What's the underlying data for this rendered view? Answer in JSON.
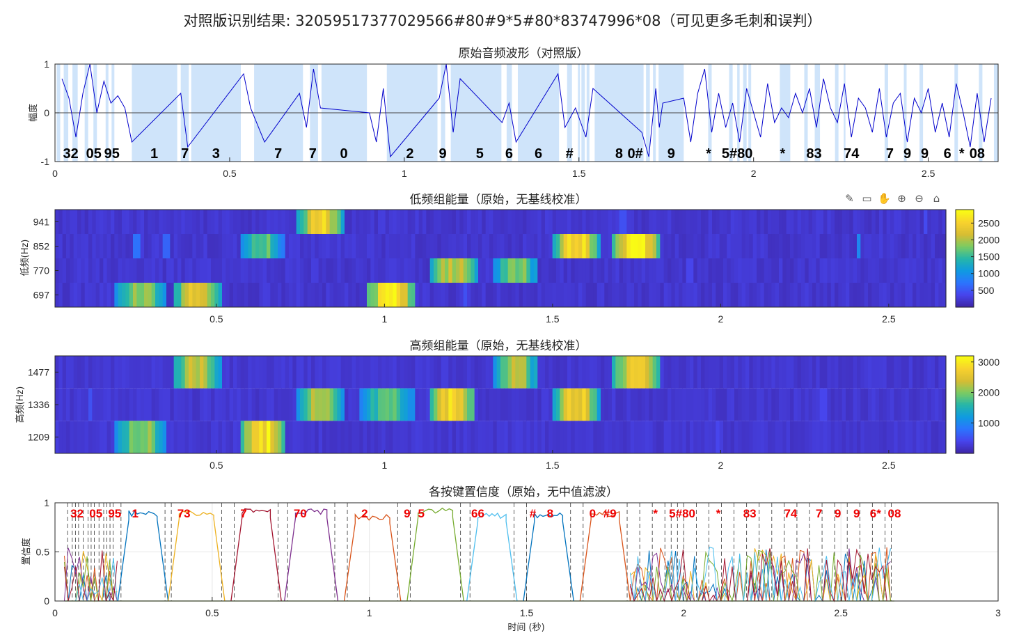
{
  "figure_title": "对照版识别结果: 32059517377029566#80#9*5#80*83747996*08（可见更多毛刺和误判）",
  "toolbar": {
    "icons": [
      "brush-icon",
      "data-tip-icon",
      "pan-hand-icon",
      "zoom-in-icon",
      "zoom-out-icon",
      "home-icon"
    ],
    "glyphs": [
      "✎",
      "▭",
      "✋",
      "⊕",
      "⊖",
      "⌂"
    ]
  },
  "chart_data": [
    {
      "type": "line",
      "title": "原始音频波形（对照版）",
      "ylabel": "幅度",
      "xlim": [
        0,
        2.7
      ],
      "ylim": [
        -1,
        1
      ],
      "xticks": [
        "0",
        "0.5",
        "1",
        "1.5",
        "2",
        "2.5"
      ],
      "yticks": [
        "-1",
        "0",
        "1"
      ],
      "highlight_color": "#cfe4fa",
      "line_color": "#0000cc",
      "highlight_intervals": [
        [
          0.005,
          0.015
        ],
        [
          0.025,
          0.038
        ],
        [
          0.05,
          0.065
        ],
        [
          0.085,
          0.095
        ],
        [
          0.11,
          0.12
        ],
        [
          0.145,
          0.153
        ],
        [
          0.162,
          0.17
        ],
        [
          0.22,
          0.35
        ],
        [
          0.36,
          0.383
        ],
        [
          0.39,
          0.532
        ],
        [
          0.57,
          0.71
        ],
        [
          0.73,
          0.753
        ],
        [
          0.763,
          0.893
        ],
        [
          0.95,
          1.095
        ],
        [
          1.105,
          1.117
        ],
        [
          1.133,
          1.278
        ],
        [
          1.293,
          1.308
        ],
        [
          1.325,
          1.443
        ],
        [
          1.466,
          1.48
        ],
        [
          1.497,
          1.503
        ],
        [
          1.507,
          1.517
        ],
        [
          1.522,
          1.53
        ],
        [
          1.545,
          1.685
        ],
        [
          1.692,
          1.703
        ],
        [
          1.712,
          1.72
        ],
        [
          1.728,
          1.8
        ],
        [
          1.87,
          1.88
        ],
        [
          1.93,
          1.94
        ],
        [
          1.953,
          1.96
        ],
        [
          1.97,
          1.98
        ],
        [
          1.985,
          1.993
        ],
        [
          2.075,
          2.105
        ],
        [
          2.145,
          2.155
        ],
        [
          2.175,
          2.19
        ],
        [
          2.233,
          2.243
        ],
        [
          2.258,
          2.263
        ],
        [
          2.375,
          2.385
        ],
        [
          2.43,
          2.438
        ],
        [
          2.475,
          2.485
        ],
        [
          2.575,
          2.585
        ],
        [
          2.645,
          2.655
        ],
        [
          2.688,
          2.7
        ]
      ],
      "waveform": {
        "x": [
          0.02,
          0.04,
          0.06,
          0.08,
          0.1,
          0.12,
          0.14,
          0.16,
          0.18,
          0.2,
          0.22,
          0.36,
          0.38,
          0.54,
          0.56,
          0.6,
          0.7,
          0.72,
          0.74,
          0.76,
          0.9,
          0.92,
          0.94,
          0.96,
          1.1,
          1.12,
          1.14,
          1.16,
          1.28,
          1.3,
          1.32,
          1.44,
          1.46,
          1.49,
          1.52,
          1.54,
          1.68,
          1.7,
          1.72,
          1.73,
          1.74,
          1.8,
          1.82,
          1.84,
          1.86,
          1.88,
          1.9,
          1.92,
          1.94,
          1.96,
          1.98,
          2.0,
          2.02,
          2.04,
          2.06,
          2.08,
          2.1,
          2.12,
          2.14,
          2.16,
          2.18,
          2.2,
          2.22,
          2.24,
          2.26,
          2.28,
          2.3,
          2.32,
          2.34,
          2.36,
          2.38,
          2.4,
          2.42,
          2.44,
          2.46,
          2.48,
          2.5,
          2.52,
          2.54,
          2.56,
          2.58,
          2.6,
          2.62,
          2.64,
          2.66,
          2.68
        ],
        "y": [
          0.7,
          0.3,
          -0.5,
          0.4,
          1.0,
          0.0,
          0.65,
          0.2,
          0.35,
          0.1,
          -0.6,
          0.4,
          -0.7,
          0.8,
          0.1,
          -0.6,
          0.4,
          -0.3,
          0.9,
          0.1,
          0.0,
          -0.6,
          0.5,
          -0.9,
          0.3,
          1.0,
          -0.4,
          0.7,
          -0.2,
          0.2,
          -0.6,
          0.8,
          -0.3,
          0.1,
          -0.5,
          0.5,
          -0.4,
          -0.9,
          0.5,
          -0.3,
          0.2,
          0.3,
          -0.6,
          0.4,
          0.9,
          -0.4,
          0.4,
          -0.3,
          0.2,
          -0.6,
          0.5,
          0.0,
          -0.5,
          0.6,
          -0.2,
          0.1,
          -0.1,
          0.4,
          0.0,
          0.5,
          -0.3,
          0.7,
          0.1,
          -0.2,
          0.6,
          -0.5,
          0.3,
          0.1,
          -0.4,
          0.5,
          -0.5,
          0.2,
          0.4,
          -0.6,
          0.3,
          0.0,
          0.5,
          -0.4,
          0.2,
          -0.5,
          0.6,
          0.0,
          -0.7,
          0.4,
          -0.6,
          0.3
        ]
      },
      "segment_labels": [
        {
          "text": "32",
          "x": 0.045
        },
        {
          "text": "05",
          "x": 0.111
        },
        {
          "text": "95",
          "x": 0.163
        },
        {
          "text": "1",
          "x": 0.284
        },
        {
          "text": "7",
          "x": 0.372
        },
        {
          "text": "3",
          "x": 0.461
        },
        {
          "text": "7",
          "x": 0.639
        },
        {
          "text": "7",
          "x": 0.738
        },
        {
          "text": "0",
          "x": 0.827
        },
        {
          "text": "2",
          "x": 1.016
        },
        {
          "text": "9",
          "x": 1.11
        },
        {
          "text": "5",
          "x": 1.216
        },
        {
          "text": "6",
          "x": 1.3
        },
        {
          "text": "6",
          "x": 1.384
        },
        {
          "text": "#",
          "x": 1.473
        },
        {
          "text": "8",
          "x": 1.615
        },
        {
          "text": "0#",
          "x": 1.661
        },
        {
          "text": "9",
          "x": 1.764
        },
        {
          "text": "*",
          "x": 1.871
        },
        {
          "text": "5#80",
          "x": 1.953
        },
        {
          "text": "*",
          "x": 2.083
        },
        {
          "text": "83",
          "x": 2.173
        },
        {
          "text": "74",
          "x": 2.28
        },
        {
          "text": "7",
          "x": 2.39
        },
        {
          "text": "9",
          "x": 2.44
        },
        {
          "text": "9",
          "x": 2.49
        },
        {
          "text": "6",
          "x": 2.555
        },
        {
          "text": "*",
          "x": 2.596
        },
        {
          "text": "08",
          "x": 2.64
        }
      ]
    },
    {
      "type": "heatmap",
      "title": "低频组能量（原始，无基线校准）",
      "ylabel": "低频(Hz)",
      "xlim": [
        0.02,
        2.67
      ],
      "rows": [
        "941",
        "852",
        "770",
        "697"
      ],
      "xticks": [
        "0.5",
        "1",
        "1.5",
        "2",
        "2.5"
      ],
      "colorbar_ticks": [
        "500",
        "1000",
        "1500",
        "2000",
        "2500"
      ],
      "clim": [
        0,
        2900
      ],
      "baseline": 120,
      "blocks": [
        {
          "row": "697",
          "x": [
            0.2,
            0.35
          ],
          "peak": 2000
        },
        {
          "row": "697",
          "x": [
            0.37,
            0.52
          ],
          "peak": 2300
        },
        {
          "row": "852",
          "x": [
            0.57,
            0.7
          ],
          "peak": 1600
        },
        {
          "row": "941",
          "x": [
            0.74,
            0.88
          ],
          "peak": 2500
        },
        {
          "row": "697",
          "x": [
            0.95,
            1.09
          ],
          "peak": 2900
        },
        {
          "row": "770",
          "x": [
            1.13,
            1.28
          ],
          "peak": 2100
        },
        {
          "row": "770",
          "x": [
            1.32,
            1.46
          ],
          "peak": 1800
        },
        {
          "row": "852",
          "x": [
            1.5,
            1.64
          ],
          "peak": 2600
        },
        {
          "row": "852",
          "x": [
            1.68,
            1.82
          ],
          "peak": 2900
        }
      ],
      "spikes": [
        {
          "row": "852",
          "x": [
            0.25,
            0.27
          ],
          "v": 700
        },
        {
          "row": "852",
          "x": [
            0.34,
            0.36
          ],
          "v": 600
        },
        {
          "row": "852",
          "x": [
            2.4,
            2.42
          ],
          "v": 900
        },
        {
          "row": "941",
          "x": [
            1.7,
            1.72
          ],
          "v": 450
        },
        {
          "row": "697",
          "x": [
            1.24,
            1.25
          ],
          "v": 450
        },
        {
          "row": "941",
          "x": [
            2.6,
            2.61
          ],
          "v": 400
        },
        {
          "row": "770",
          "x": [
            1.9,
            1.92
          ],
          "v": 350
        }
      ]
    },
    {
      "type": "heatmap",
      "title": "高频组能量（原始，无基线校准）",
      "ylabel": "高频(Hz)",
      "xlim": [
        0.02,
        2.67
      ],
      "rows": [
        "1477",
        "1336",
        "1209"
      ],
      "xticks": [
        "0.5",
        "1",
        "1.5",
        "2",
        "2.5"
      ],
      "colorbar_ticks": [
        "1000",
        "2000",
        "3000"
      ],
      "clim": [
        0,
        3200
      ],
      "baseline": 150,
      "blocks": [
        {
          "row": "1209",
          "x": [
            0.2,
            0.35
          ],
          "peak": 2100
        },
        {
          "row": "1477",
          "x": [
            0.37,
            0.52
          ],
          "peak": 2300
        },
        {
          "row": "1209",
          "x": [
            0.57,
            0.71
          ],
          "peak": 3100
        },
        {
          "row": "1336",
          "x": [
            0.74,
            0.88
          ],
          "peak": 2300
        },
        {
          "row": "1336",
          "x": [
            0.93,
            1.09
          ],
          "peak": 1800
        },
        {
          "row": "1336",
          "x": [
            1.13,
            1.27
          ],
          "peak": 2900
        },
        {
          "row": "1477",
          "x": [
            1.32,
            1.46
          ],
          "peak": 2200
        },
        {
          "row": "1336",
          "x": [
            1.5,
            1.64
          ],
          "peak": 2700
        },
        {
          "row": "1477",
          "x": [
            1.68,
            1.82
          ],
          "peak": 2800
        }
      ],
      "spikes": [
        {
          "row": "1336",
          "x": [
            0.12,
            0.13
          ],
          "v": 500
        },
        {
          "row": "1477",
          "x": [
            1.7,
            1.71
          ],
          "v": 450
        },
        {
          "row": "1209",
          "x": [
            1.98,
            2.0
          ],
          "v": 400
        },
        {
          "row": "1336",
          "x": [
            2.3,
            2.32
          ],
          "v": 400
        }
      ]
    },
    {
      "type": "line",
      "title": "各按键置信度（原始，无中值滤波）",
      "ylabel": "置信度",
      "xlabel": "时间 (秒)",
      "xlim": [
        0,
        3
      ],
      "ylim": [
        0,
        1
      ],
      "xticks": [
        "0",
        "0.5",
        "1",
        "1.5",
        "2",
        "2.5",
        "3"
      ],
      "yticks": [
        "0",
        "0.5",
        "1"
      ],
      "plateaus": [
        {
          "x": [
            0.21,
            0.35
          ],
          "level": 0.92,
          "color": "#0072bd"
        },
        {
          "x": [
            0.37,
            0.53
          ],
          "level": 0.93,
          "color": "#edb120"
        },
        {
          "x": [
            0.57,
            0.71
          ],
          "level": 0.94,
          "color": "#a2142f"
        },
        {
          "x": [
            0.74,
            0.89
          ],
          "level": 0.94,
          "color": "#7e2f8e"
        },
        {
          "x": [
            0.93,
            1.09
          ],
          "level": 0.88,
          "color": "#d95319"
        },
        {
          "x": [
            1.13,
            1.29
          ],
          "level": 0.95,
          "color": "#77ac30"
        },
        {
          "x": [
            1.32,
            1.46
          ],
          "level": 0.9,
          "color": "#4dbeee"
        },
        {
          "x": [
            1.5,
            1.64
          ],
          "level": 0.9,
          "color": "#0072bd"
        },
        {
          "x": [
            1.68,
            1.82
          ],
          "level": 0.92,
          "color": "#d95319"
        }
      ],
      "dashed_lines_x": [
        0.04,
        0.055,
        0.065,
        0.075,
        0.09,
        0.105,
        0.115,
        0.125,
        0.14,
        0.155,
        0.165,
        0.175,
        0.185,
        0.21,
        0.35,
        0.37,
        0.53,
        0.57,
        0.71,
        0.74,
        0.89,
        0.93,
        1.09,
        1.13,
        1.29,
        1.32,
        1.46,
        1.5,
        1.64,
        1.68,
        1.82,
        1.86,
        1.9,
        1.94,
        1.96,
        1.98,
        2.0,
        2.04,
        2.08,
        2.12,
        2.16,
        2.2,
        2.24,
        2.28,
        2.32,
        2.36,
        2.4,
        2.44,
        2.48,
        2.52,
        2.56,
        2.6,
        2.64,
        2.66
      ],
      "labels": [
        {
          "text": "32",
          "x": 0.07
        },
        {
          "text": "05",
          "x": 0.13
        },
        {
          "text": "95",
          "x": 0.19
        },
        {
          "text": "1",
          "x": 0.255
        },
        {
          "text": "73",
          "x": 0.41
        },
        {
          "text": "7",
          "x": 0.6
        },
        {
          "text": "70",
          "x": 0.78
        },
        {
          "text": "2",
          "x": 0.985
        },
        {
          "text": "9",
          "x": 1.12
        },
        {
          "text": "5",
          "x": 1.165
        },
        {
          "text": "66",
          "x": 1.345
        },
        {
          "text": "#",
          "x": 1.52
        },
        {
          "text": "8",
          "x": 1.575
        },
        {
          "text": "0",
          "x": 1.71
        },
        {
          "text": "#9",
          "x": 1.765
        },
        {
          "text": "*",
          "x": 1.91
        },
        {
          "text": "5#80",
          "x": 1.995
        },
        {
          "text": "*",
          "x": 2.11
        },
        {
          "text": "83",
          "x": 2.21
        },
        {
          "text": "74",
          "x": 2.34
        },
        {
          "text": "7",
          "x": 2.43
        },
        {
          "text": "9",
          "x": 2.49
        },
        {
          "text": "9",
          "x": 2.55
        },
        {
          "text": "6*",
          "x": 2.61
        },
        {
          "text": "08",
          "x": 2.67
        }
      ],
      "series_colors": [
        "#0072bd",
        "#d95319",
        "#edb120",
        "#7e2f8e",
        "#77ac30",
        "#4dbeee",
        "#a2142f"
      ]
    }
  ]
}
